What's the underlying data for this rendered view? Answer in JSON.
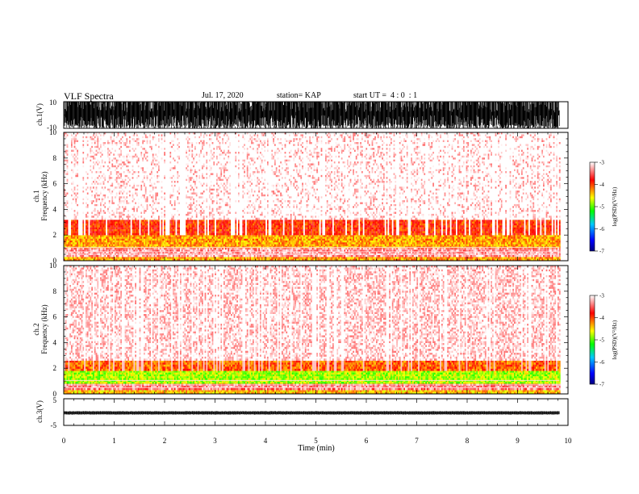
{
  "header": {
    "title": "VLF Spectra",
    "date": "Jul. 17, 2020",
    "station": "station= KAP",
    "start": "start UT =  4 : 0  : 1"
  },
  "chart_data": [
    {
      "type": "line",
      "panel": "ch1-waveform",
      "ylabel": "ch.1(V)",
      "ylim": [
        -10,
        10
      ],
      "y_ticks": [
        "10",
        "-10"
      ],
      "xlim": [
        0,
        10
      ],
      "x_data_end": 9.83,
      "y_envelope": [
        -10,
        10
      ]
    },
    {
      "type": "heatmap",
      "panel": "ch1-spectrogram",
      "ylabel_line1": "ch.1",
      "ylabel_line2": "Frequency (kHz)",
      "ylim": [
        0,
        10
      ],
      "y_ticks": [
        "0",
        "2",
        "4",
        "6",
        "8",
        "10"
      ],
      "xlim": [
        0,
        10
      ],
      "colorbar": {
        "label": "log(PSD)(V²/Hz)",
        "ticks": [
          "-3",
          "-4",
          "-5",
          "-6",
          "-7"
        ],
        "range": [
          -7,
          -3
        ]
      },
      "bands": [
        {
          "f0": 0.0,
          "f1": 0.3,
          "level": -4.3
        },
        {
          "f0": 0.3,
          "f1": 1.0,
          "level": -3.3
        },
        {
          "f0": 1.0,
          "f1": 2.0,
          "level": -4.3
        },
        {
          "f0": 2.0,
          "f1": 3.2,
          "level": -3.9
        },
        {
          "f0": 3.2,
          "f1": 10.0,
          "level": -3.1
        }
      ]
    },
    {
      "type": "heatmap",
      "panel": "ch2-spectrogram",
      "ylabel_line1": "ch.2",
      "ylabel_line2": "Frequency (kHz)",
      "ylim": [
        0,
        10
      ],
      "y_ticks": [
        "0",
        "2",
        "4",
        "6",
        "8",
        "10"
      ],
      "xlim": [
        0,
        10
      ],
      "colorbar": {
        "label": "log(PSD)(V²/Hz)",
        "ticks": [
          "-3",
          "-4",
          "-5",
          "-6",
          "-7"
        ],
        "range": [
          -7,
          -3
        ]
      },
      "bands": [
        {
          "f0": 0.0,
          "f1": 0.3,
          "level": -4.4
        },
        {
          "f0": 0.3,
          "f1": 0.8,
          "level": -3.4
        },
        {
          "f0": 0.8,
          "f1": 1.8,
          "level": -4.8
        },
        {
          "f0": 1.8,
          "f1": 2.6,
          "level": -4.1
        },
        {
          "f0": 2.6,
          "f1": 10.0,
          "level": -3.1
        }
      ]
    },
    {
      "type": "line",
      "panel": "ch3-waveform",
      "ylabel": "ch.3(V)",
      "ylim": [
        -5,
        5
      ],
      "y_ticks": [
        "5",
        "-5"
      ],
      "xlim": [
        0,
        10
      ],
      "x_data_end": 9.83,
      "y_envelope": [
        -0.8,
        0.2
      ],
      "xlabel": "Time (min)",
      "x_ticks": [
        "0",
        "1",
        "2",
        "3",
        "4",
        "5",
        "6",
        "7",
        "8",
        "9",
        "10"
      ]
    }
  ],
  "colors": {
    "waveform": "#000000",
    "colormap": [
      "#000080",
      "#0000ff",
      "#00c0ff",
      "#00ff00",
      "#ffff00",
      "#ff8000",
      "#ff0000",
      "#ffffff"
    ]
  }
}
